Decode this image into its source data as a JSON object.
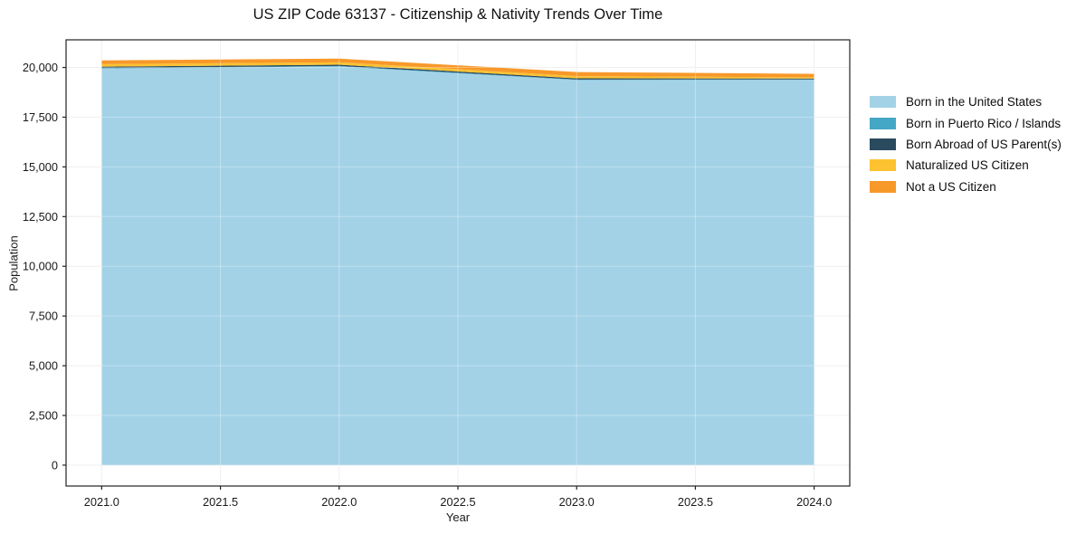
{
  "title": "US ZIP Code 63137 - Citizenship & Nativity Trends Over Time",
  "axes": {
    "x_label": "Year",
    "y_label": "Population",
    "x_ticks": [
      "2021.0",
      "2021.5",
      "2022.0",
      "2022.5",
      "2023.0",
      "2023.5",
      "2024.0"
    ],
    "x_tick_values": [
      2021,
      2021.5,
      2022,
      2022.5,
      2023,
      2023.5,
      2024
    ],
    "y_ticks": [
      "0",
      "2,500",
      "5,000",
      "7,500",
      "10,000",
      "12,500",
      "15,000",
      "17,500",
      "20,000"
    ],
    "y_tick_values": [
      0,
      2500,
      5000,
      7500,
      10000,
      12500,
      15000,
      17500,
      20000
    ],
    "x_range": [
      2020.85,
      2024.15
    ],
    "y_range": [
      -1050,
      21390
    ],
    "grid": true
  },
  "chart_data": {
    "type": "area",
    "stacked": true,
    "title": "US ZIP Code 63137 - Citizenship & Nativity Trends Over Time",
    "xlabel": "Year",
    "ylabel": "Population",
    "legend_position": "outside-right",
    "x": [
      2021,
      2022,
      2023,
      2024
    ],
    "series": [
      {
        "name": "Born in the United States",
        "color": "#a3d2e7",
        "values": [
          19950,
          20050,
          19370,
          19380
        ]
      },
      {
        "name": "Born in Puerto Rico / Islands",
        "color": "#45a7c6",
        "values": [
          25,
          25,
          25,
          20
        ]
      },
      {
        "name": "Born Abroad of US Parent(s)",
        "color": "#2a4a5e",
        "values": [
          65,
          65,
          60,
          45
        ]
      },
      {
        "name": "Naturalized US Citizen",
        "color": "#fcc22f",
        "values": [
          125,
          120,
          110,
          60
        ]
      },
      {
        "name": "Not a US Citizen",
        "color": "#f7982a",
        "values": [
          190,
          185,
          205,
          175
        ]
      }
    ],
    "stack_totals": [
      20355,
      20445,
      19770,
      19680
    ]
  },
  "style": {
    "grid_color": "#e9e9e9",
    "grid_overlay_color": "rgba(255,255,255,0.32)",
    "frame_color": "#222222",
    "tick_text_color": "#191919"
  }
}
